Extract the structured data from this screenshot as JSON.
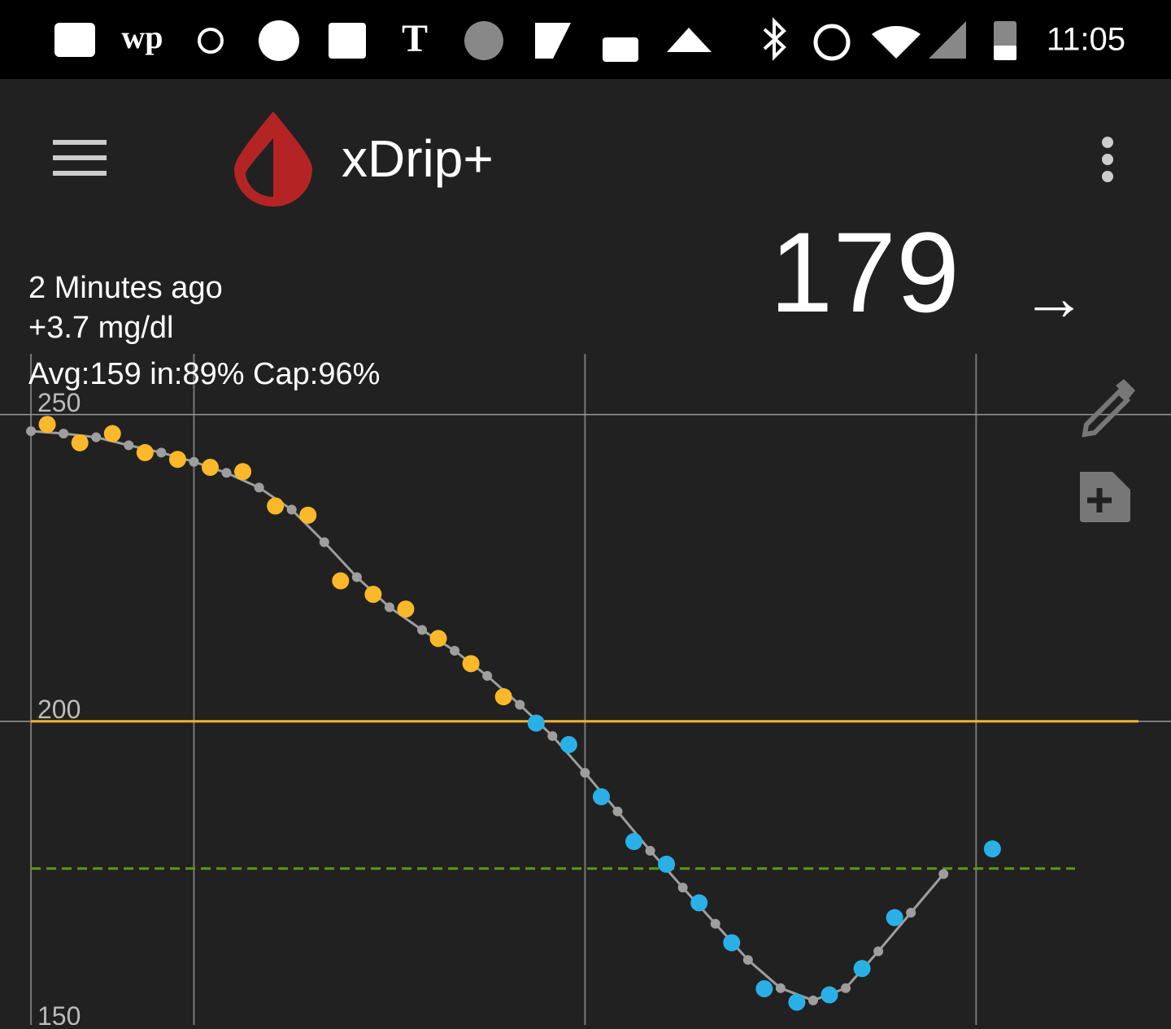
{
  "status_bar": {
    "time": "11:05"
  },
  "app_bar": {
    "title": "xDrip+"
  },
  "reading": {
    "value": "179",
    "arrow": "→",
    "age": "2 Minutes ago",
    "delta": "+3.7 mg/dl",
    "stats": "Avg:159 in:89% Cap:96%"
  },
  "chart_data": {
    "type": "scatter",
    "xlim": [
      -4.75,
      174.9
    ],
    "ylim": [
      150.5,
      259.9
    ],
    "yticks": [
      150,
      200,
      250
    ],
    "xgrid": [
      0,
      25,
      85,
      145
    ],
    "grid": true,
    "high_line": {
      "value": 200,
      "color": "#f9b233"
    },
    "target_line": {
      "value": 176,
      "color": "#5a9a14"
    },
    "series": [
      {
        "color": "#9e9e9e",
        "style": "line",
        "x": [
          0,
          5,
          10,
          15,
          20,
          25,
          30,
          35,
          40,
          45,
          50,
          55,
          60,
          65,
          70,
          75,
          80,
          85,
          90,
          95,
          100,
          105,
          110,
          115,
          120,
          125,
          130,
          135,
          140
        ],
        "values": [
          247.3,
          246.9,
          246.3,
          245.0,
          243.8,
          242.3,
          240.5,
          238.1,
          234.5,
          229.2,
          223.5,
          218.6,
          214.9,
          211.5,
          207.4,
          202.7,
          197.6,
          191.6,
          185.3,
          178.9,
          172.9,
          167.0,
          161.1,
          156.5,
          154.5,
          156.5,
          162.5,
          168.8,
          175.1
        ]
      },
      {
        "color": "#fbb829",
        "x": [
          2.5,
          7.5,
          12.5,
          17.5,
          22.5,
          27.5,
          32.5,
          37.5,
          42.5,
          47.5,
          52.5,
          57.5,
          62.5,
          67.5,
          72.5
        ],
        "values": [
          248.4,
          245.4,
          246.9,
          243.8,
          242.7,
          241.4,
          240.7,
          235.1,
          233.6,
          222.9,
          220.7,
          218.3,
          213.5,
          209.4,
          204.0
        ]
      },
      {
        "color": "#2ab0e6",
        "x": [
          77.5,
          82.5,
          87.5,
          92.5,
          97.5,
          102.5,
          107.5,
          112.5,
          117.5,
          122.5,
          127.5,
          132.5,
          147.5
        ],
        "values": [
          199.7,
          196.2,
          187.7,
          180.4,
          176.7,
          170.4,
          163.9,
          156.4,
          154.2,
          155.4,
          159.7,
          168.0,
          179.2
        ]
      }
    ]
  }
}
